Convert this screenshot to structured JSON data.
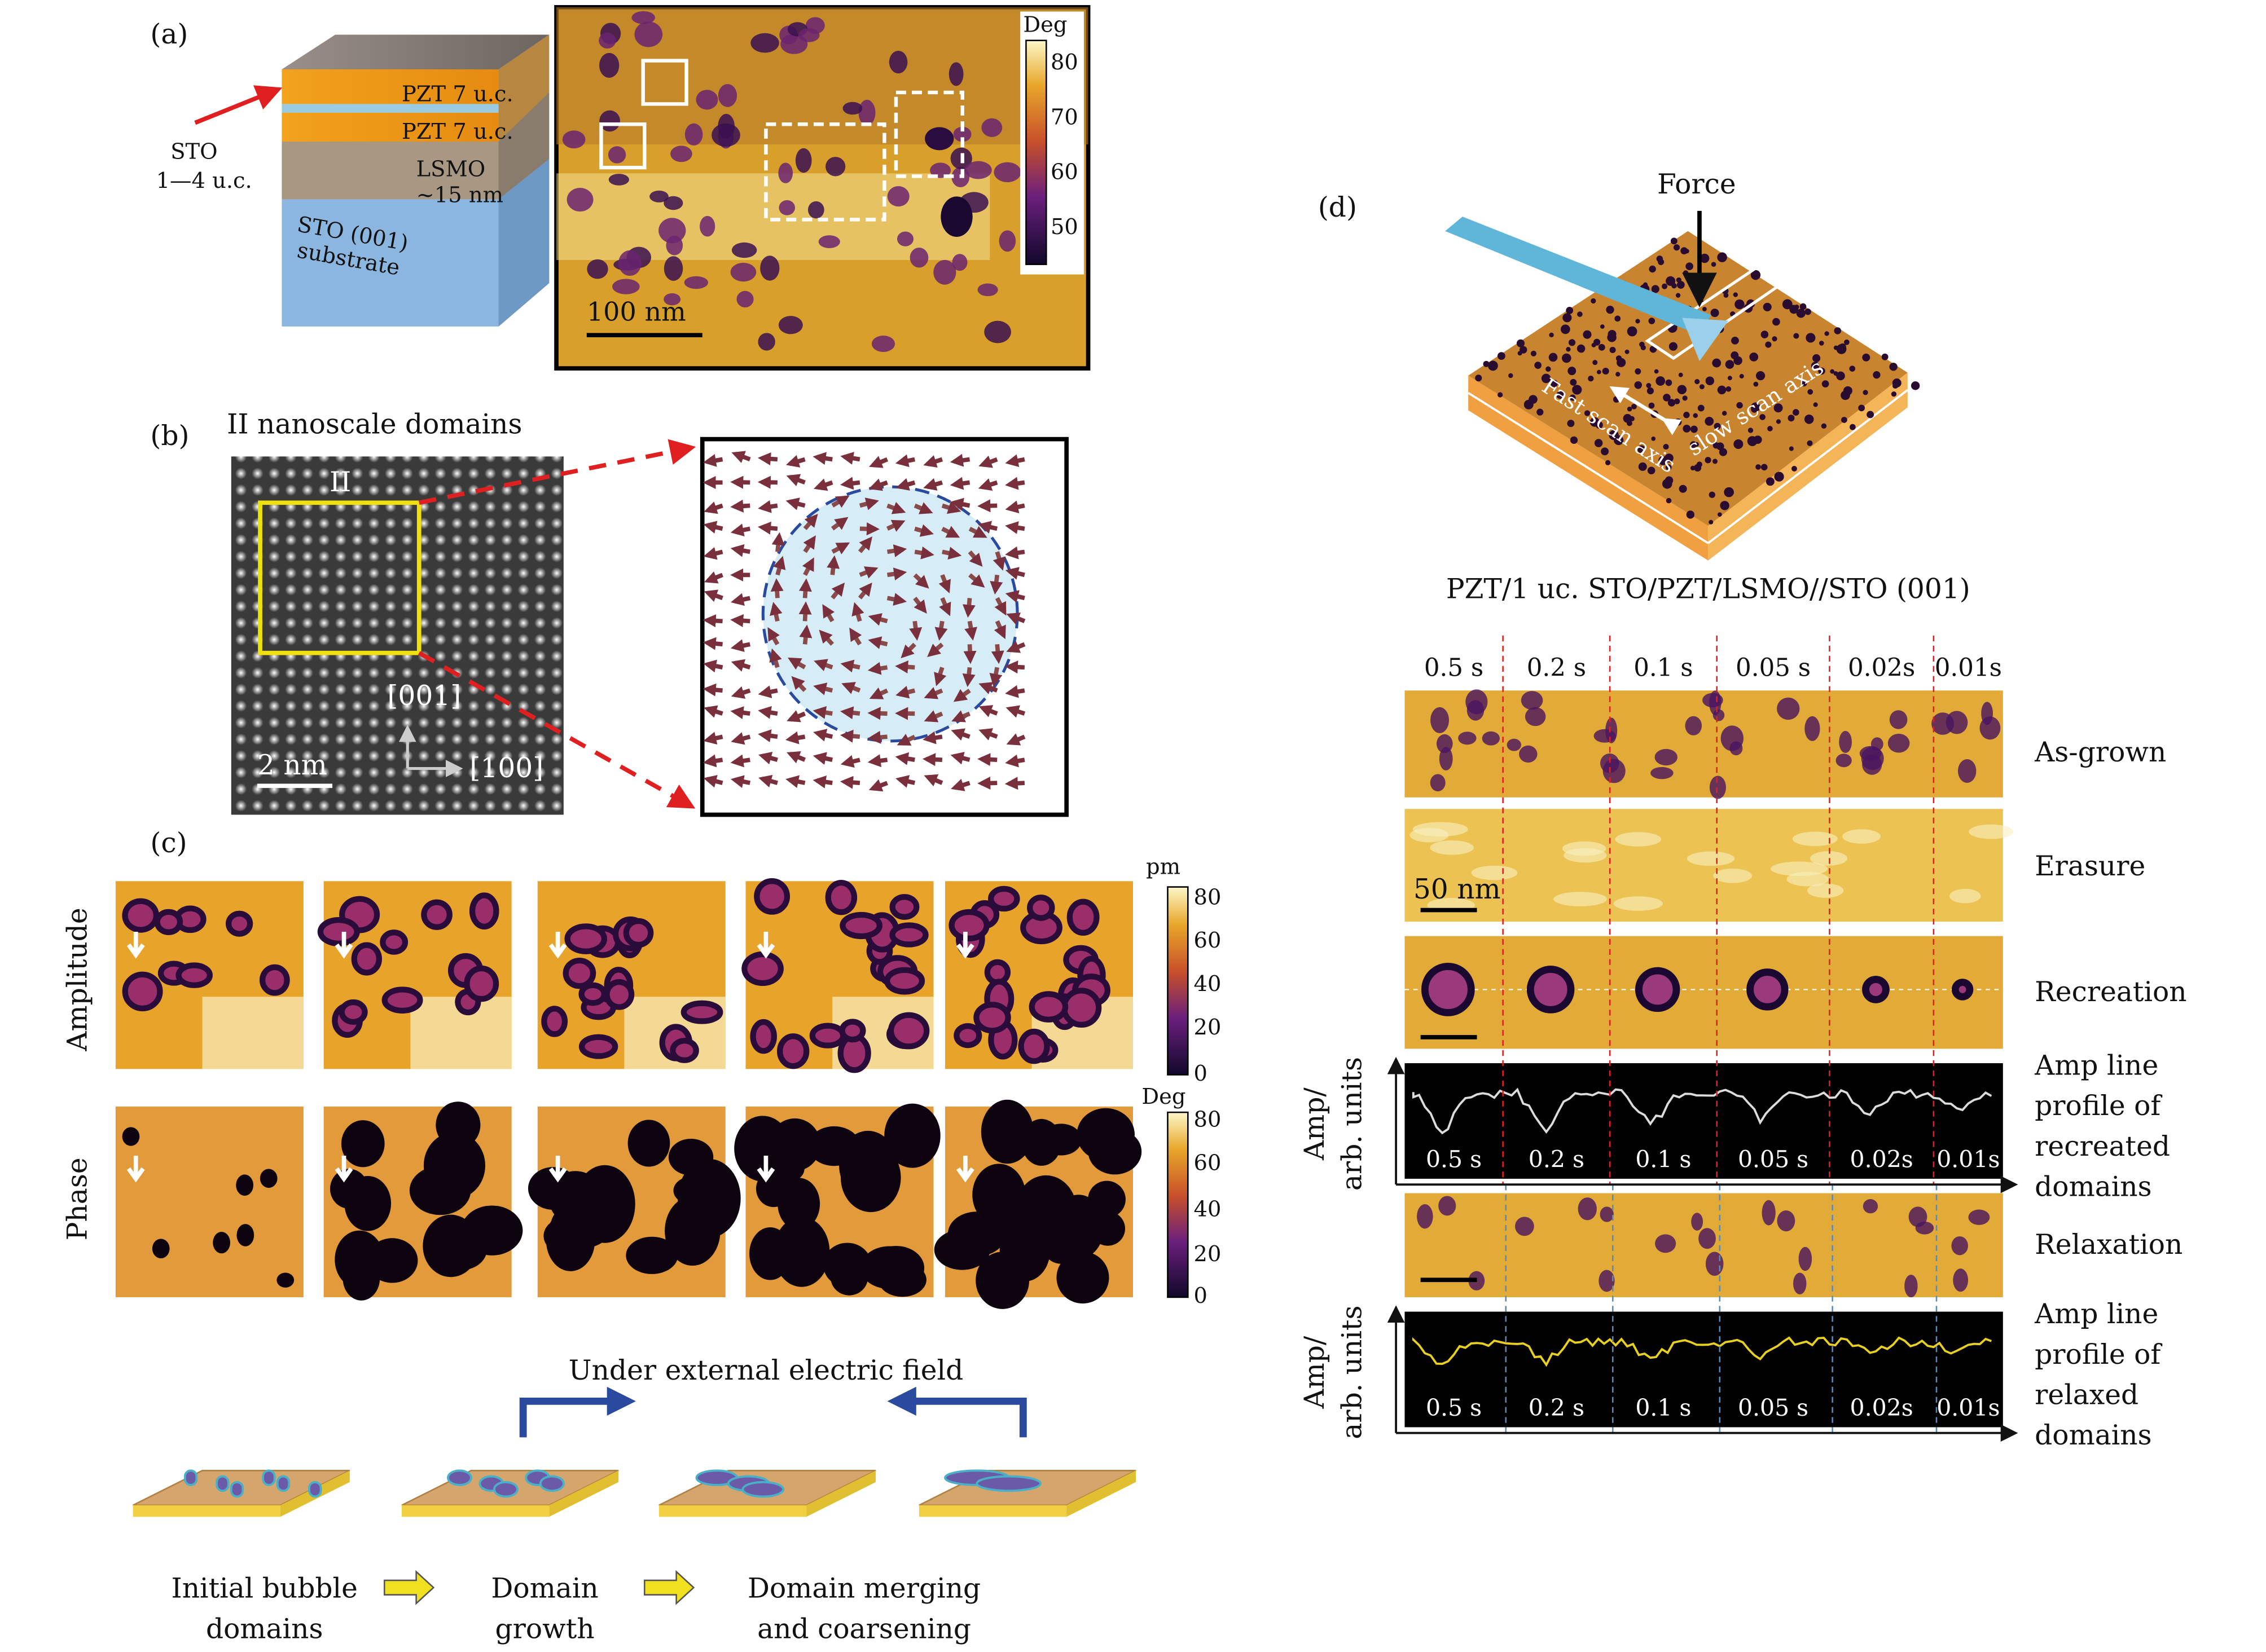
{
  "panel_labels": {
    "a": "(a)",
    "b": "(b)",
    "c": "(c)",
    "d": "(d)"
  },
  "panel_a": {
    "stack_layers": [
      "PZT 7 u.c.",
      "PZT 7 u.c.",
      "LSMO",
      "~15 nm",
      "STO (001)",
      "substrate"
    ],
    "sto_label": [
      "STO",
      "1—4 u.c."
    ],
    "scale_bar": "100 nm",
    "colorbar": {
      "unit": "Deg",
      "ticks": [
        "80",
        "70",
        "60",
        "50"
      ]
    }
  },
  "panel_b": {
    "title": "II nanoscale domains",
    "region_label": "II",
    "axis_labels": [
      "[001]",
      "[100]"
    ],
    "scale_bar": "2 nm"
  },
  "panel_c": {
    "row_labels": [
      "Amplitude",
      "Phase"
    ],
    "amp_colorbar": {
      "unit": "pm",
      "ticks": [
        "80",
        "60",
        "40",
        "20",
        "0"
      ]
    },
    "phase_colorbar": {
      "unit": "Deg",
      "ticks": [
        "80",
        "60",
        "40",
        "20",
        "0"
      ]
    },
    "field_label": "Under external electric field",
    "stages": [
      {
        "line1": "Initial bubble",
        "line2": "domains"
      },
      {
        "line1": "Domain",
        "line2": "growth"
      },
      {
        "line1": "Domain merging",
        "line2": "and coarsening"
      }
    ]
  },
  "panel_d": {
    "force_label": "Force",
    "fast_axis": "Fast scan axis",
    "slow_axis": "slow scan axis",
    "sample": "PZT/1 uc. STO/PZT/LSMO//STO (001)",
    "times": [
      "0.5 s",
      "0.2 s",
      "0.1 s",
      "0.05 s",
      "0.02s",
      "0.01s"
    ],
    "rows": [
      "As-grown",
      "Erasure",
      "Recreation",
      "Relaxation"
    ],
    "scale_bar": "50 nm",
    "profile_ylabel": [
      "Amp/",
      "arb. units"
    ],
    "profile1": [
      "Amp line",
      "profile of",
      "recreated",
      "domains"
    ],
    "profile2": [
      "Amp line",
      "profile of",
      "relaxed",
      "domains"
    ]
  }
}
